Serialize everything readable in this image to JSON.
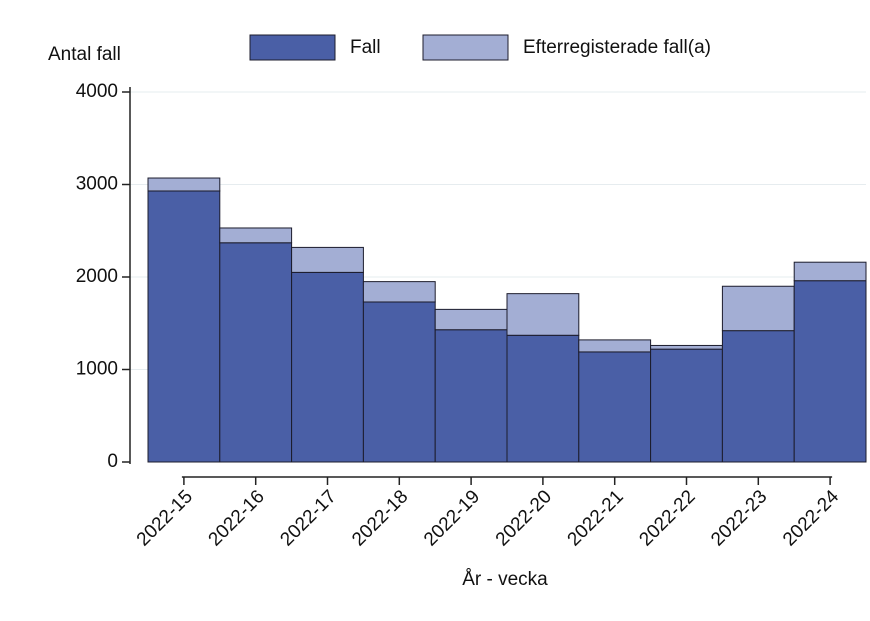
{
  "chart_data": {
    "type": "stacked-bar",
    "y_label": "Antal fall",
    "x_label": "År - vecka",
    "categories": [
      "2022-15",
      "2022-16",
      "2022-17",
      "2022-18",
      "2022-19",
      "2022-20",
      "2022-21",
      "2022-22",
      "2022-23",
      "2022-24"
    ],
    "series": [
      {
        "name": "Fall",
        "color": "#4a5fa6",
        "values": [
          2930,
          2370,
          2050,
          1730,
          1430,
          1370,
          1190,
          1220,
          1420,
          1960
        ]
      },
      {
        "name": "Efterregisterade fall(a)",
        "color": "#a3aed4",
        "values": [
          140,
          160,
          270,
          220,
          220,
          450,
          130,
          40,
          480,
          200
        ]
      }
    ],
    "ylim": [
      0,
      4000
    ],
    "yticks": [
      0,
      1000,
      2000,
      3000,
      4000
    ],
    "grid": true
  }
}
